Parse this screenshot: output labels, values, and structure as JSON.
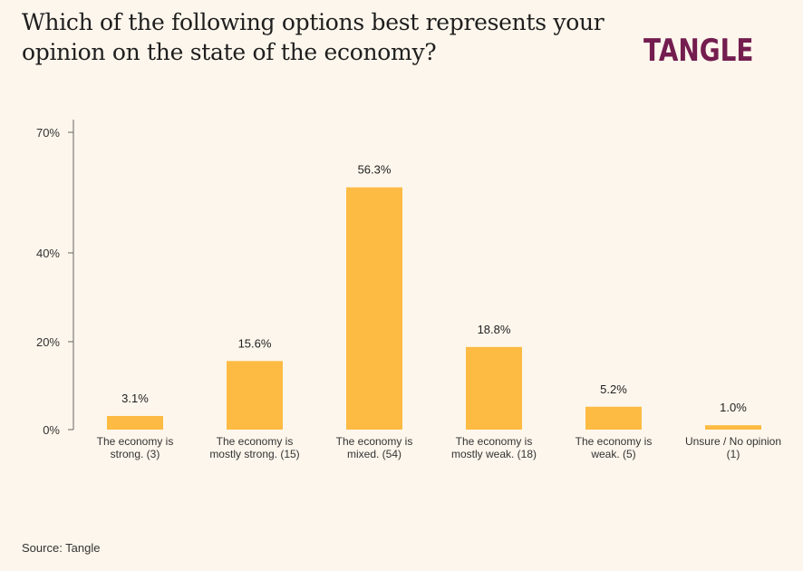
{
  "header": {
    "title": "Which of the following options best represents your opinion on the state of the economy?",
    "logo_text": "TANGLE"
  },
  "footer": {
    "source": "Source: Tangle"
  },
  "colors": {
    "bar": "#fdbb43",
    "logo": "#741d4f",
    "background": "#fdf6ec",
    "axis": "#666666"
  },
  "chart_data": {
    "type": "bar",
    "title": "Which of the following options best represents your opinion on the state of the economy?",
    "xlabel": "",
    "ylabel": "",
    "categories": [
      [
        "The economy is",
        "strong. (3)"
      ],
      [
        "The economy is",
        "mostly strong. (15)"
      ],
      [
        "The economy is",
        "mixed. (54)"
      ],
      [
        "The economy is",
        "mostly weak. (18)"
      ],
      [
        "The economy is",
        "weak. (5)"
      ],
      [
        "Unsure / No opinion",
        "(1)"
      ]
    ],
    "values": [
      3.1,
      15.6,
      56.3,
      18.8,
      5.2,
      1.0
    ],
    "value_labels": [
      "3.1%",
      "15.6%",
      "56.3%",
      "18.8%",
      "5.2%",
      "1.0%"
    ],
    "yticks": [
      {
        "value": 0,
        "label": "0%"
      },
      {
        "value": 20,
        "label": "20%"
      },
      {
        "value": 40,
        "label": "40%"
      },
      {
        "value": 70,
        "label": "70%"
      }
    ],
    "grid": false,
    "legend": "none"
  }
}
